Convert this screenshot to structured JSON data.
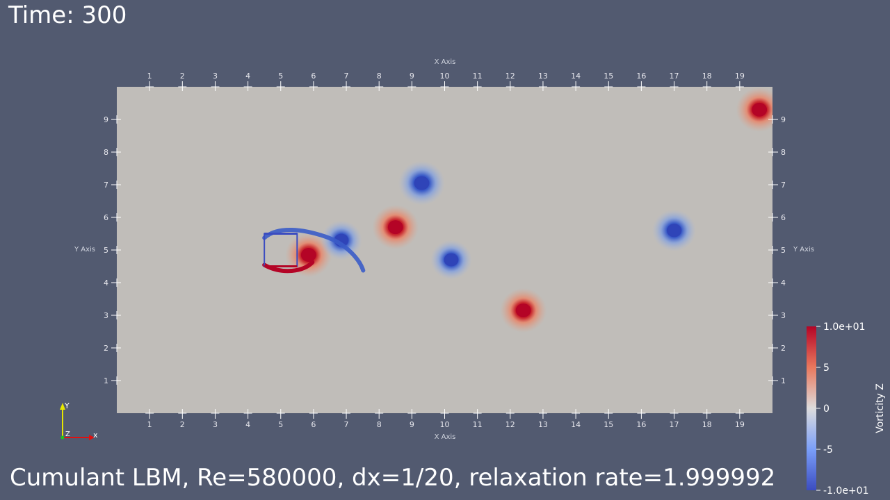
{
  "header": {
    "time_label": "Time: 300"
  },
  "footer": {
    "caption": "Cumulant LBM, Re=580000, dx=1/20, relaxation rate=1.999992"
  },
  "colors": {
    "background": "#525a70",
    "domain": "#c0bdb9",
    "positive": "#b40426",
    "negative": "#3b4cc0"
  },
  "chart_data": {
    "type": "heatmap",
    "title": "",
    "xlabel": "X Axis",
    "ylabel": "Y Axis",
    "xlim": [
      0,
      20
    ],
    "ylim": [
      0,
      10
    ],
    "x_ticks": [
      1,
      2,
      3,
      4,
      5,
      6,
      7,
      8,
      9,
      10,
      11,
      12,
      13,
      14,
      15,
      16,
      17,
      18,
      19
    ],
    "y_ticks": [
      1,
      2,
      3,
      4,
      5,
      6,
      7,
      8,
      9
    ],
    "colorbar": {
      "title": "Vorticity Z",
      "range": [
        -10,
        10
      ],
      "tick_values": [
        10,
        5,
        0,
        -5,
        -10
      ],
      "tick_labels": [
        "1.0e+01",
        "5",
        "0",
        "-5",
        "-1.0e+01"
      ]
    },
    "obstacle": {
      "shape": "square",
      "x": [
        4.5,
        5.5
      ],
      "y": [
        4.5,
        5.5
      ]
    },
    "vortices": [
      {
        "x": 8.5,
        "y": 5.7,
        "vorticity": 10
      },
      {
        "x": 9.3,
        "y": 7.05,
        "vorticity": -10
      },
      {
        "x": 10.2,
        "y": 4.7,
        "vorticity": -8
      },
      {
        "x": 12.4,
        "y": 3.15,
        "vorticity": 10
      },
      {
        "x": 17.0,
        "y": 5.6,
        "vorticity": -9
      },
      {
        "x": 19.6,
        "y": 9.3,
        "vorticity": 10
      },
      {
        "x": 5.85,
        "y": 4.85,
        "vorticity": 10
      },
      {
        "x": 6.85,
        "y": 5.3,
        "vorticity": -8
      }
    ]
  },
  "orientation_axes": {
    "x_label": "x",
    "y_label": "Y",
    "z_label": "Z"
  }
}
